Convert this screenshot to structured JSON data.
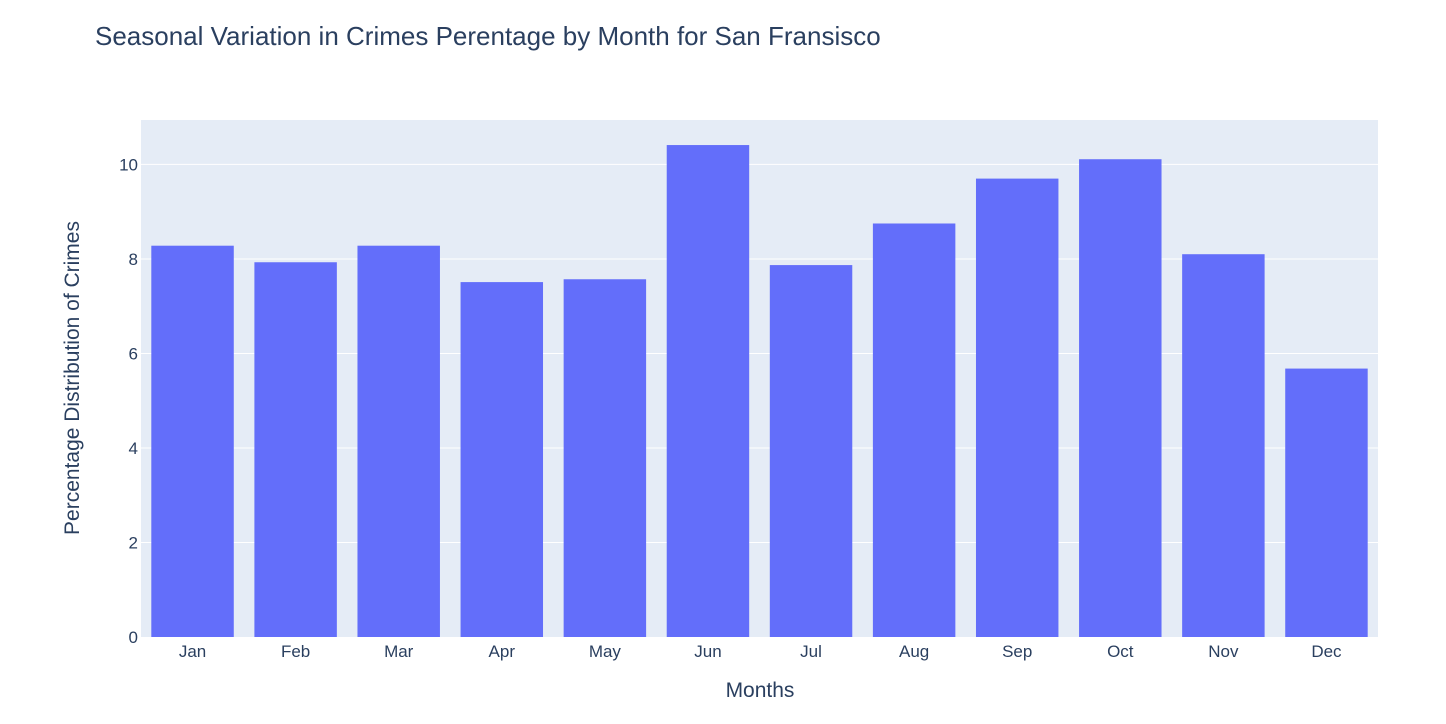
{
  "chart_data": {
    "type": "bar",
    "title": "Seasonal Variation in Crimes Perentage by Month for San Fransisco",
    "xlabel": "Months",
    "ylabel": "Percentage Distribution of Crimes",
    "categories": [
      "Jan",
      "Feb",
      "Mar",
      "Apr",
      "May",
      "Jun",
      "Jul",
      "Aug",
      "Sep",
      "Oct",
      "Nov",
      "Dec"
    ],
    "values": [
      8.28,
      7.93,
      8.28,
      7.51,
      7.57,
      10.41,
      7.87,
      8.75,
      9.7,
      10.11,
      8.1,
      5.68
    ],
    "ylim": [
      0,
      10.94
    ],
    "yticks": [
      "0",
      "2",
      "4",
      "6",
      "8",
      "10"
    ],
    "grid": true,
    "legend": "none",
    "colors": {
      "bar": "#636efa",
      "plot_bg": "#e5ecf6",
      "grid": "#ffffff",
      "text": "#2a3f5f"
    }
  }
}
